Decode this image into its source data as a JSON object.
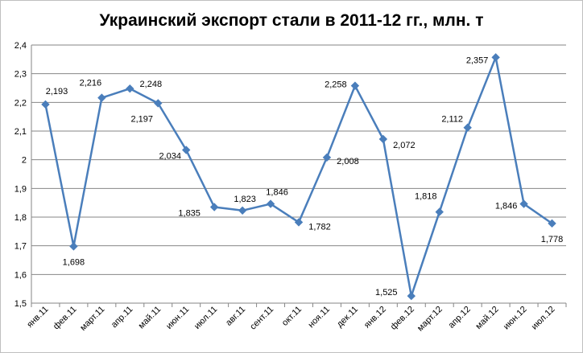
{
  "chart_data": {
    "type": "line",
    "title": "Украинский экспорт стали в 2011-12 гг., млн. т",
    "xlabel": "",
    "ylabel": "",
    "ylim": [
      1.5,
      2.4
    ],
    "yticks": [
      "1,5",
      "1,6",
      "1,7",
      "1,8",
      "1,9",
      "2",
      "2,1",
      "2,2",
      "2,3",
      "2,4"
    ],
    "grid": true,
    "legend": "none",
    "line_color": "#4a7ebb",
    "categories": [
      "янв.11",
      "фев.11",
      "март.11",
      "апр.11",
      "май.11",
      "июн.11",
      "июл.11",
      "авг.11",
      "сент.11",
      "окт.11",
      "ноя.11",
      "дек.11",
      "янв.12",
      "фев.12",
      "март.12",
      "апр.12",
      "май.12",
      "июн.12",
      "июл.12"
    ],
    "values": [
      2.193,
      1.698,
      2.216,
      2.248,
      2.197,
      2.034,
      1.835,
      1.823,
      1.846,
      1.782,
      2.008,
      2.258,
      2.072,
      1.525,
      1.818,
      2.112,
      2.357,
      1.846,
      1.778
    ],
    "data_labels": [
      "2,193",
      "1,698",
      "2,216",
      "2,248",
      "2,197",
      "2,034",
      "1,835",
      "1,823",
      "1,846",
      "1,782",
      "2,008",
      "2,258",
      "2,072",
      "1,525",
      "1,818",
      "2,112",
      "2,357",
      "1,846",
      "1,778"
    ]
  }
}
